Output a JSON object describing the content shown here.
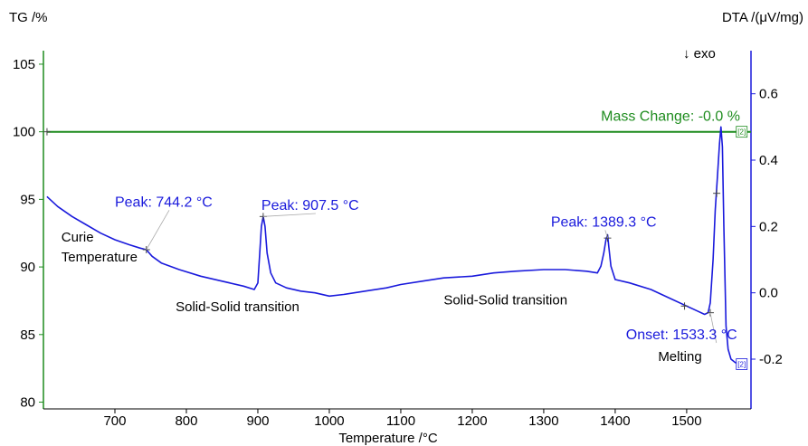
{
  "chart_data": {
    "type": "line",
    "xlabel": "Temperature /°C",
    "y_left_label": "TG /%",
    "y_right_label": "DTA /(μV/mg)",
    "exo_label": "↓ exo",
    "xlim": [
      600,
      1590
    ],
    "y_left_lim": [
      79.5,
      106
    ],
    "y_right_lim": [
      -0.35,
      0.73
    ],
    "x_ticks": [
      700,
      800,
      900,
      1000,
      1100,
      1200,
      1300,
      1400,
      1500
    ],
    "y_left_ticks": [
      80,
      85,
      90,
      95,
      100,
      105
    ],
    "y_right_ticks": [
      -0.2,
      0.0,
      0.2,
      0.4,
      0.6
    ],
    "y_right_tick_labels": [
      "-0.2",
      "0.0",
      "0.2",
      "0.4",
      "0.6"
    ],
    "series": [
      {
        "axis": "left",
        "color": "#1e8c1e",
        "x": [
          605,
          1590
        ],
        "y": [
          100.0,
          100.0
        ]
      },
      {
        "axis": "right",
        "color": "#1a1adc",
        "x": [
          605,
          620,
          640,
          660,
          680,
          700,
          720,
          735,
          744,
          752,
          765,
          790,
          820,
          850,
          880,
          895,
          900,
          903,
          905,
          907.5,
          910,
          913,
          918,
          925,
          940,
          960,
          980,
          1000,
          1020,
          1050,
          1080,
          1100,
          1130,
          1160,
          1200,
          1230,
          1260,
          1300,
          1330,
          1360,
          1375,
          1380,
          1384,
          1387,
          1389.3,
          1391,
          1394,
          1400,
          1420,
          1450,
          1480,
          1500,
          1515,
          1525,
          1530,
          1533,
          1537,
          1540,
          1543,
          1546,
          1548,
          1550,
          1552,
          1555,
          1558,
          1562,
          1568,
          1575
        ],
        "y": [
          0.29,
          0.26,
          0.23,
          0.205,
          0.18,
          0.16,
          0.145,
          0.135,
          0.13,
          0.11,
          0.09,
          0.07,
          0.05,
          0.035,
          0.02,
          0.01,
          0.03,
          0.13,
          0.2,
          0.23,
          0.2,
          0.12,
          0.06,
          0.03,
          0.015,
          0.005,
          0.0,
          -0.01,
          -0.005,
          0.005,
          0.015,
          0.025,
          0.035,
          0.045,
          0.05,
          0.06,
          0.065,
          0.07,
          0.07,
          0.065,
          0.06,
          0.08,
          0.12,
          0.16,
          0.175,
          0.14,
          0.08,
          0.04,
          0.03,
          0.01,
          -0.02,
          -0.04,
          -0.055,
          -0.065,
          -0.06,
          -0.03,
          0.1,
          0.25,
          0.35,
          0.45,
          0.5,
          0.44,
          0.2,
          -0.1,
          -0.17,
          -0.2,
          -0.21,
          -0.215
        ]
      }
    ],
    "markers_left": [
      {
        "x": 605,
        "y": 100.0
      }
    ],
    "markers_right": [
      {
        "x": 744,
        "y": 0.13
      },
      {
        "x": 907.5,
        "y": 0.23
      },
      {
        "x": 1389.3,
        "y": 0.165
      },
      {
        "x": 1497,
        "y": -0.04
      },
      {
        "x": 1533,
        "y": -0.06
      },
      {
        "x": 1542,
        "y": 0.3
      }
    ],
    "annotations": [
      {
        "text": "Peak: 744.2 °C",
        "color": "blue",
        "x": 700,
        "y_axis": "right",
        "y": 0.26,
        "leader": [
          744,
          0.13
        ]
      },
      {
        "text": "Peak: 907.5 °C",
        "color": "blue",
        "x": 905,
        "y_axis": "right",
        "y": 0.25,
        "leader": [
          907.5,
          0.23
        ]
      },
      {
        "text": "Peak: 1389.3 °C",
        "color": "blue",
        "x": 1310,
        "y_axis": "right",
        "y": 0.2,
        "leader": [
          1389.3,
          0.165
        ]
      },
      {
        "text": "Onset: 1533.3 °C",
        "color": "blue",
        "x": 1415,
        "y_axis": "right",
        "y": -0.14,
        "leader": [
          1533,
          -0.06
        ]
      },
      {
        "text": "Mass Change: -0.0 %",
        "color": "green",
        "x": 1380,
        "y_axis": "left",
        "y": 100.8
      },
      {
        "text": "Curie",
        "color": "black",
        "x": 625,
        "y_axis": "right",
        "y": 0.155
      },
      {
        "text": "Temperature",
        "color": "black",
        "x": 625,
        "y_axis": "right",
        "y": 0.095
      },
      {
        "text": "Solid-Solid transition",
        "color": "black",
        "x": 785,
        "y_axis": "right",
        "y": -0.055
      },
      {
        "text": "Solid-Solid transition",
        "color": "black",
        "x": 1160,
        "y_axis": "right",
        "y": -0.035
      },
      {
        "text": "Melting",
        "color": "black",
        "x": 1460,
        "y_axis": "right",
        "y": -0.205
      }
    ],
    "end_tags": [
      {
        "text": "[2]",
        "x": 1577,
        "y_axis": "left",
        "y": 100.0,
        "color": "#1e8c1e"
      },
      {
        "text": "[2]",
        "x": 1577,
        "y_axis": "right",
        "y": -0.215,
        "color": "#1a1adc"
      }
    ],
    "grid": false,
    "legend": "none"
  }
}
